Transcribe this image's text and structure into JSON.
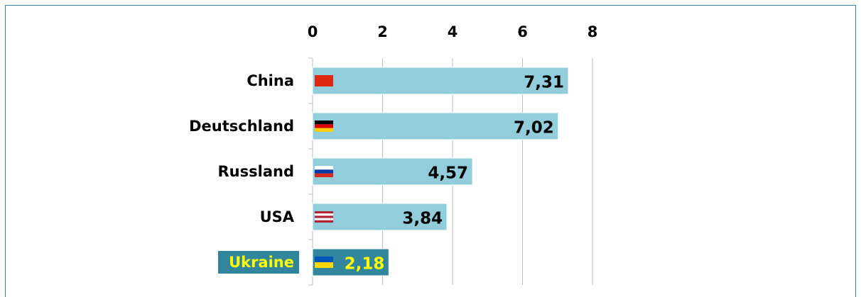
{
  "chart_data": {
    "type": "bar",
    "orientation": "horizontal",
    "categories": [
      "China",
      "Deutschland",
      "Russland",
      "USA",
      "Ukraine"
    ],
    "values": [
      7.31,
      7.02,
      4.57,
      3.84,
      2.18
    ],
    "value_labels": [
      "7,31",
      "7,02",
      "4,57",
      "3,84",
      "2,18"
    ],
    "colors": [
      "#92cddc",
      "#92cddc",
      "#92cddc",
      "#92cddc",
      "#31859c"
    ],
    "highlight_color": "#31859c",
    "highlight_text_color": "#ffff00",
    "xlim": [
      0,
      8
    ],
    "xticks": [
      0,
      2,
      4,
      6,
      8
    ],
    "grid": true
  }
}
